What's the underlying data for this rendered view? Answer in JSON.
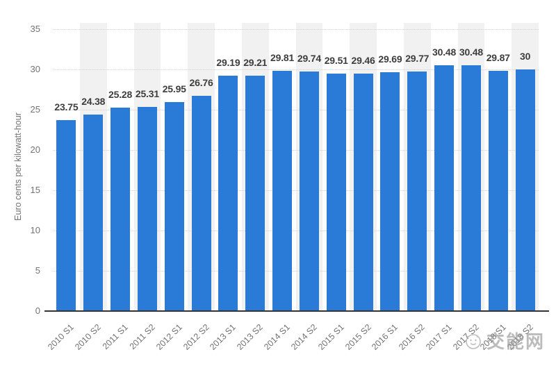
{
  "chart_data": {
    "type": "bar",
    "title": "",
    "xlabel": "",
    "ylabel": "Euro cents per kilowatt-hour",
    "categories": [
      "2010 S1",
      "2010 S2",
      "2011 S1",
      "2011 S2",
      "2012 S1",
      "2012 S2",
      "2013 S1",
      "2013 S2",
      "2014 S1",
      "2014 S2",
      "2015 S1",
      "2015 S2",
      "2016 S1",
      "2016 S2",
      "2017 S1",
      "2017 S2",
      "2018 S1",
      "2018 S2"
    ],
    "values": [
      23.75,
      24.38,
      25.28,
      25.31,
      25.95,
      26.76,
      29.19,
      29.21,
      29.81,
      29.74,
      29.51,
      29.46,
      29.69,
      29.77,
      30.48,
      30.48,
      29.87,
      30
    ],
    "value_labels": [
      "23.75",
      "24.38",
      "25.28",
      "25.31",
      "25.95",
      "26.76",
      "29.19",
      "29.21",
      "29.81",
      "29.74",
      "29.51",
      "29.46",
      "29.69",
      "29.77",
      "30.48",
      "30.48",
      "29.87",
      "30"
    ],
    "ylim": [
      0,
      35
    ],
    "yticks": [
      0,
      5,
      10,
      15,
      20,
      25,
      30,
      35
    ],
    "grid": "horizontal-dotted",
    "legend_position": "none",
    "background_bands": "alternate category columns shaded (S2 columns)",
    "colors": {
      "bar": "#2a7ad8",
      "band": "#f1f1f1",
      "grid": "#d2d2d2",
      "axis_line": "#333333",
      "tick_text": "#737373",
      "value_label_text": "#3d3d3d",
      "watermark": "#949494"
    }
  },
  "watermark": {
    "icon": "smiley-face-doodle",
    "text": "交能网"
  }
}
